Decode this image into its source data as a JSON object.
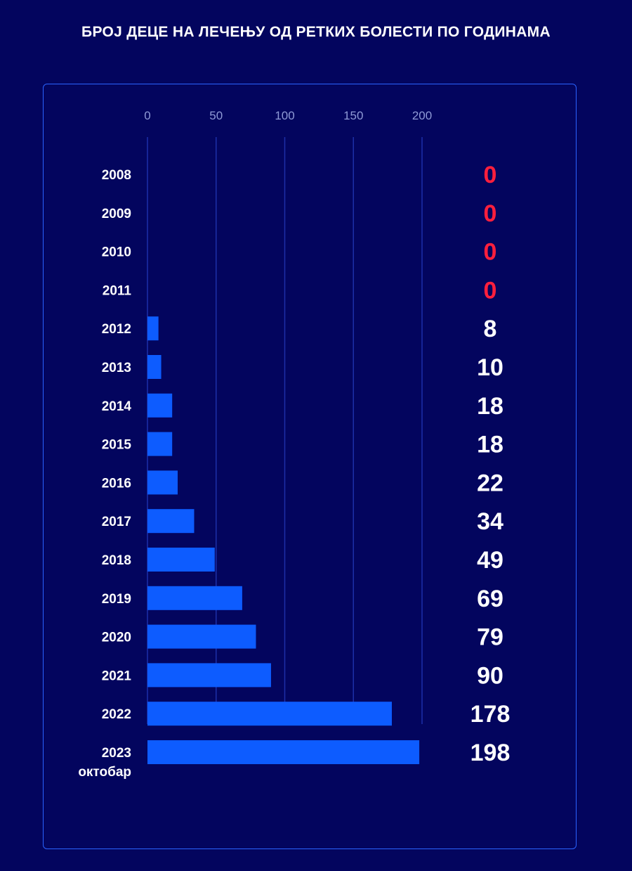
{
  "chart_data": {
    "type": "bar",
    "orientation": "horizontal",
    "title": "БРОЈ ДЕЦЕ НА ЛЕЧЕЊУ ОД РЕТКИХ БОЛЕСТИ ПО ГОДИНАМА",
    "categories": [
      "2008",
      "2009",
      "2010",
      "2011",
      "2012",
      "2013",
      "2014",
      "2015",
      "2016",
      "2017",
      "2018",
      "2019",
      "2020",
      "2021",
      "2022",
      "2023"
    ],
    "category_sublabels": [
      "",
      "",
      "",
      "",
      "",
      "",
      "",
      "",
      "",
      "",
      "",
      "",
      "",
      "",
      "",
      "октобар"
    ],
    "values": [
      0,
      0,
      0,
      0,
      8,
      10,
      18,
      18,
      22,
      34,
      49,
      69,
      79,
      90,
      178,
      198
    ],
    "value_labels": [
      "0",
      "0",
      "0",
      "0",
      "8",
      "10",
      "18",
      "18",
      "22",
      "34",
      "49",
      "69",
      "79",
      "90",
      "178",
      "198"
    ],
    "xlim": [
      0,
      200
    ],
    "xticks": [
      "0",
      "50",
      "100",
      "150",
      "200"
    ],
    "x_axis_position": "top",
    "grid": true,
    "legend": "none"
  },
  "colors": {
    "background": "#03055e",
    "bar": "#0d5cff",
    "gridline": "#1d2fa8",
    "frame": "#2a63ff",
    "zero_value": "#ff1f3d",
    "value": "#ffffff",
    "tick": "#8f9ad6"
  }
}
